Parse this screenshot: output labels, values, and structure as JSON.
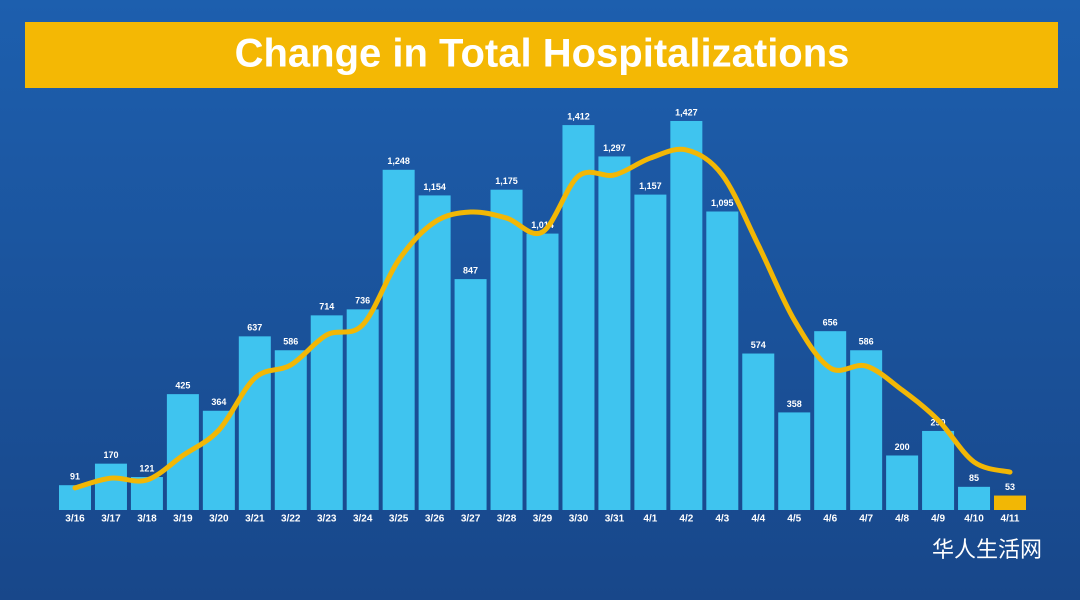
{
  "chart_data": {
    "type": "bar",
    "title": "Change in Total Hospitalizations",
    "categories": [
      "3/16",
      "3/17",
      "3/18",
      "3/19",
      "3/20",
      "3/21",
      "3/22",
      "3/23",
      "3/24",
      "3/25",
      "3/26",
      "3/27",
      "3/28",
      "3/29",
      "3/30",
      "3/31",
      "4/1",
      "4/2",
      "4/3",
      "4/4",
      "4/5",
      "4/6",
      "4/7",
      "4/8",
      "4/9",
      "4/10",
      "4/11"
    ],
    "series": [
      {
        "type": "bar",
        "values": [
          91,
          170,
          121,
          425,
          364,
          637,
          586,
          714,
          736,
          1248,
          1154,
          847,
          1175,
          1014,
          1412,
          1297,
          1157,
          1427,
          1095,
          574,
          358,
          656,
          586,
          200,
          290,
          85,
          53
        ],
        "value_labels": [
          "91",
          "170",
          "121",
          "425",
          "364",
          "637",
          "586",
          "714",
          "736",
          "1,248",
          "1,154",
          "847",
          "1,175",
          "1,014",
          "1,412",
          "1,297",
          "1,157",
          "1,427",
          "1,095",
          "574",
          "358",
          "656",
          "586",
          "200",
          "290",
          "85",
          "53"
        ],
        "colors": [
          "#3fc4ef",
          "#3fc4ef",
          "#3fc4ef",
          "#3fc4ef",
          "#3fc4ef",
          "#3fc4ef",
          "#3fc4ef",
          "#3fc4ef",
          "#3fc4ef",
          "#3fc4ef",
          "#3fc4ef",
          "#3fc4ef",
          "#3fc4ef",
          "#3fc4ef",
          "#3fc4ef",
          "#3fc4ef",
          "#3fc4ef",
          "#3fc4ef",
          "#3fc4ef",
          "#3fc4ef",
          "#3fc4ef",
          "#3fc4ef",
          "#3fc4ef",
          "#3fc4ef",
          "#3fc4ef",
          "#3fc4ef",
          "#f2b705"
        ]
      },
      {
        "type": "line",
        "color": "#f2b705",
        "values": [
          81,
          117,
          110,
          200,
          293,
          484,
          532,
          642,
          679,
          917,
          1056,
          1093,
          1071,
          1020,
          1225,
          1229,
          1291,
          1321,
          1229,
          972,
          697,
          521,
          528,
          440,
          330,
          176,
          139
        ]
      }
    ],
    "watermark": "华人生活网"
  }
}
